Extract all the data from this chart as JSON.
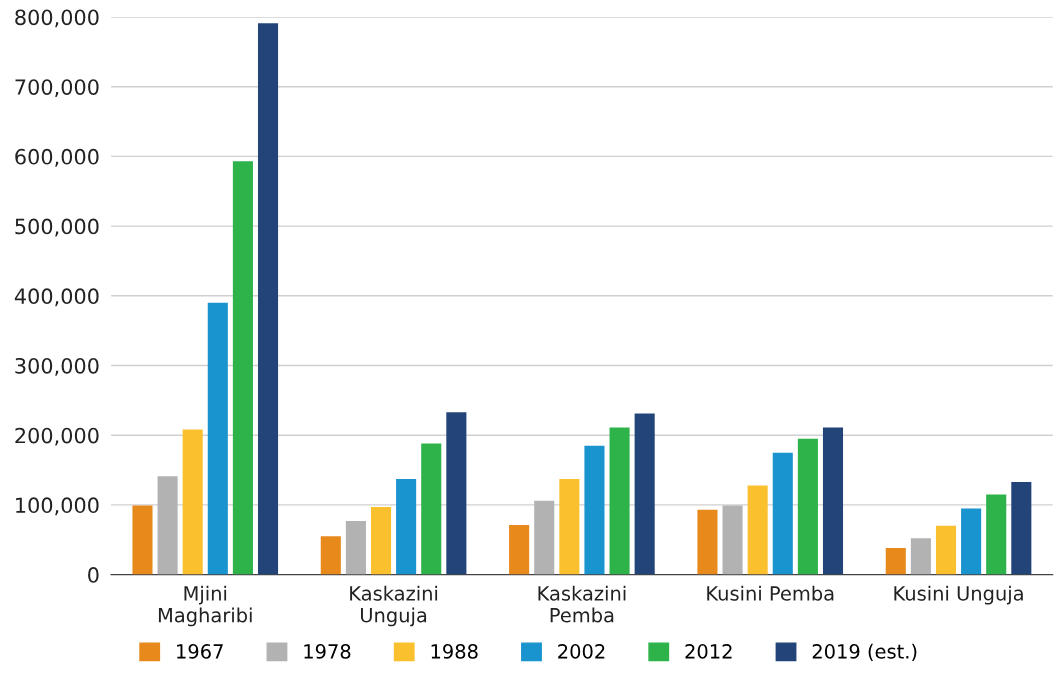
{
  "chart_data": {
    "type": "bar",
    "categories": [
      "Mjini\nMagharibi",
      "Kaskazini\nUnguja",
      "Kaskazini\nPemba",
      "Kusini Pemba",
      "Kusini Unguja"
    ],
    "series": [
      {
        "name": "1967",
        "color": "#e8891c",
        "values": [
          99000,
          55000,
          71000,
          93000,
          38000
        ]
      },
      {
        "name": "1978",
        "color": "#b2b2b2",
        "values": [
          141000,
          77000,
          106000,
          99000,
          52000
        ]
      },
      {
        "name": "1988",
        "color": "#fbc02d",
        "values": [
          208000,
          97000,
          137000,
          128000,
          70000
        ]
      },
      {
        "name": "2002",
        "color": "#1a94cf",
        "values": [
          390000,
          137000,
          185000,
          175000,
          95000
        ]
      },
      {
        "name": "2012",
        "color": "#2db34a",
        "values": [
          593000,
          188000,
          211000,
          195000,
          115000
        ]
      },
      {
        "name": "2019 (est.)",
        "color": "#234479",
        "values": [
          791000,
          233000,
          231000,
          211000,
          133000
        ]
      }
    ],
    "ylim": [
      0,
      800000
    ],
    "yticks": [
      {
        "value": 0,
        "label": "0"
      },
      {
        "value": 100000,
        "label": "100,000"
      },
      {
        "value": 200000,
        "label": "200,000"
      },
      {
        "value": 300000,
        "label": "300,000"
      },
      {
        "value": 400000,
        "label": "400,000"
      },
      {
        "value": 500000,
        "label": "500,000"
      },
      {
        "value": 600000,
        "label": "600,000"
      },
      {
        "value": 700000,
        "label": "700,000"
      },
      {
        "value": 800000,
        "label": "800,000"
      }
    ],
    "grid": "y",
    "legend": "bottom"
  }
}
